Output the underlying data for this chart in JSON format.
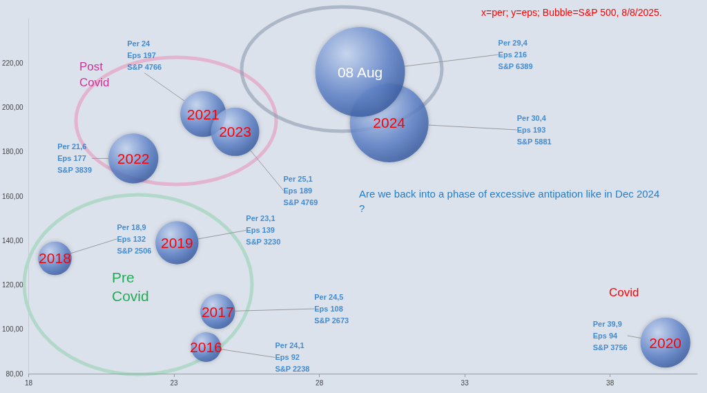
{
  "chart_data": {
    "type": "bubble",
    "title": "x=per; y=eps; Bubble=S&P 500, 8/8/2025.",
    "annotations": [
      "Post Covid",
      "Pre Covid",
      "Covid",
      "Are we back into a phase of excessive antipation like in Dec 2024 ?"
    ],
    "xlim": [
      18,
      41
    ],
    "xticks": [
      18,
      23,
      28,
      33,
      38
    ],
    "ylim": [
      80,
      240
    ],
    "yticks": [
      {
        "value": 80,
        "label": "80,00"
      },
      {
        "value": 100,
        "label": "100,00"
      },
      {
        "value": 120,
        "label": "120,00"
      },
      {
        "value": 140,
        "label": "140,00"
      },
      {
        "value": 160,
        "label": "160,00"
      },
      {
        "value": 180,
        "label": "180,00"
      },
      {
        "value": 200,
        "label": "200,00"
      },
      {
        "value": 220,
        "label": "220,00"
      }
    ],
    "grid": false,
    "legend": false,
    "series": [
      {
        "name": "2016",
        "color": "#5b80c8",
        "x": [
          24.1
        ],
        "values": [
          92
        ],
        "sizes": [
          0.11
        ],
        "value_labels": [
          "Per 24,1\nEps 92\nS&P 2238"
        ]
      },
      {
        "name": "2017",
        "color": "#5b80c8",
        "x": [
          24.5
        ],
        "values": [
          108
        ],
        "sizes": [
          0.15
        ],
        "value_labels": [
          "Per 24,5\nEps 108\nS&P 2673"
        ]
      },
      {
        "name": "2018",
        "color": "#5b80c8",
        "x": [
          18.9
        ],
        "values": [
          132
        ],
        "sizes": [
          0.14
        ],
        "value_labels": [
          "Per 18,9\nEps 132\nS&P 2506"
        ]
      },
      {
        "name": "2019",
        "color": "#5b80c8",
        "x": [
          23.1
        ],
        "values": [
          139
        ],
        "sizes": [
          0.23
        ],
        "value_labels": [
          "Per 23,1\nEps 139\nS&P 3230"
        ]
      },
      {
        "name": "2020",
        "color": "#5b80c8",
        "x": [
          39.9
        ],
        "values": [
          94
        ],
        "sizes": [
          0.31
        ],
        "value_labels": [
          "Per 39,9\nEps 94\nS&P 3756"
        ]
      },
      {
        "name": "2021",
        "color": "#5b80c8",
        "x": [
          24
        ],
        "values": [
          197
        ],
        "sizes": [
          0.26
        ],
        "value_labels": [
          "Per 24\nEps 197\nS&P 4766"
        ]
      },
      {
        "name": "2022",
        "color": "#5b80c8",
        "x": [
          21.6
        ],
        "values": [
          177
        ],
        "sizes": [
          0.31
        ],
        "value_labels": [
          "Per 21,6\nEps 177\nS&P 3839"
        ]
      },
      {
        "name": "2023",
        "color": "#5b80c8",
        "x": [
          25.1
        ],
        "values": [
          189
        ],
        "sizes": [
          0.29
        ],
        "value_labels": [
          "Per 25,1\nEps 189\nS&P 4769"
        ]
      },
      {
        "name": "2024",
        "color": "#5b80c8",
        "x": [
          30.4
        ],
        "values": [
          193
        ],
        "sizes": [
          0.77
        ],
        "value_labels": [
          "Per 30,4\nEps 193\nS&P 5881"
        ]
      },
      {
        "name": "08 Aug",
        "color": "#5b80c8",
        "x": [
          29.4
        ],
        "values": [
          216
        ],
        "sizes": [
          1
        ],
        "value_labels": [
          "Per 29,4\nEps 216\nS&P 6389"
        ]
      }
    ]
  }
}
